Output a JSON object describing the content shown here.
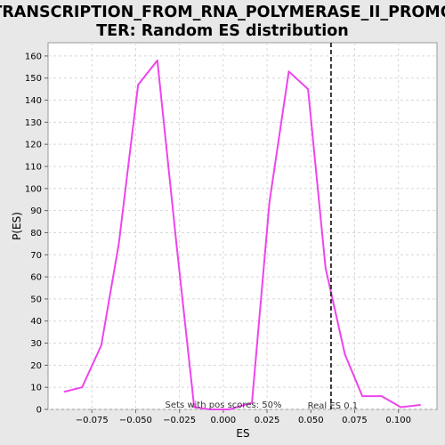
{
  "chart_data": {
    "type": "line",
    "title_lines": [
      "TRANSCRIPTION_FROM_RNA_POLYMERASE_II_PROMO",
      "TER: Random ES distribution"
    ],
    "xlabel": "ES",
    "ylabel": "P(ES)",
    "xlim": [
      -0.1,
      0.122
    ],
    "ylim": [
      0,
      166
    ],
    "x_ticks": [
      -0.075,
      -0.05,
      -0.025,
      0.0,
      0.025,
      0.05,
      0.075,
      0.1
    ],
    "x_tick_labels": [
      "−0.075",
      "−0.050",
      "−0.025",
      "0.000",
      "0.025",
      "0.050",
      "0.075",
      "0.100"
    ],
    "y_ticks": [
      0,
      10,
      20,
      30,
      40,
      50,
      60,
      70,
      80,
      90,
      100,
      110,
      120,
      130,
      140,
      150,
      160
    ],
    "grid": true,
    "series": [
      {
        "color": "#ee44ee",
        "x": [
          -0.0906,
          -0.0806,
          -0.0696,
          -0.0596,
          -0.0486,
          -0.0376,
          -0.0266,
          -0.0166,
          -0.0076,
          0.0034,
          0.0164,
          0.0264,
          0.0374,
          0.0484,
          0.0584,
          0.0694,
          0.0794,
          0.0904,
          0.1014,
          0.1124
        ],
        "y": [
          8,
          10,
          29,
          75,
          147,
          158,
          74,
          1,
          0,
          0,
          3,
          94,
          153,
          145,
          64,
          25,
          6,
          6,
          1,
          2
        ]
      }
    ],
    "annotations": {
      "real_es_label": "Real ES 0.1",
      "real_es_x": 0.0615,
      "pos_scores_label": "Sets with pos scores: 50%"
    }
  }
}
